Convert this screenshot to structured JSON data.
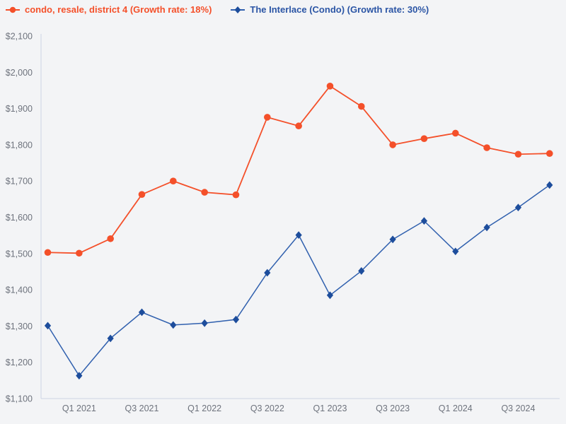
{
  "page": {
    "background_color": "#f3f4f6"
  },
  "chart_data": {
    "type": "line",
    "title": "",
    "xlabel": "",
    "ylabel": "",
    "grid": false,
    "legend_position": "top-left",
    "categories": [
      "Q4 2020",
      "Q1 2021",
      "Q2 2021",
      "Q3 2021",
      "Q4 2021",
      "Q1 2022",
      "Q2 2022",
      "Q3 2022",
      "Q4 2022",
      "Q1 2023",
      "Q2 2023",
      "Q3 2023",
      "Q4 2023",
      "Q1 2024",
      "Q2 2024",
      "Q3 2024",
      "Q4 2024"
    ],
    "x_tick_labels": [
      "Q1 2021",
      "Q3 2021",
      "Q1 2022",
      "Q3 2022",
      "Q1 2023",
      "Q3 2023",
      "Q1 2024",
      "Q3 2024"
    ],
    "x_tick_indices": [
      1,
      3,
      5,
      7,
      9,
      11,
      13,
      15
    ],
    "ylim": [
      1100,
      2100
    ],
    "y_tick_step": 100,
    "y_tick_prefix": "$",
    "y_tick_labels": [
      "$1,100",
      "$1,200",
      "$1,300",
      "$1,400",
      "$1,500",
      "$1,600",
      "$1,700",
      "$1,800",
      "$1,900",
      "$2,000",
      "$2,100"
    ],
    "axis_color": "#ccd4e4",
    "tick_label_color": "#6e737d",
    "series": [
      {
        "name": "condo, resale, district 4 (Growth rate: 18%)",
        "marker": "circle",
        "line_color": "#f4502a",
        "marker_color": "#f4502a",
        "label_color": "#f4502a",
        "line_width": 1.8,
        "values": [
          1503,
          1501,
          1541,
          1663,
          1700,
          1669,
          1662,
          1876,
          1852,
          1962,
          1906,
          1800,
          1817,
          1832,
          1792,
          1774,
          1776
        ]
      },
      {
        "name": "The Interlace (Condo) (Growth rate: 30%)",
        "marker": "diamond",
        "line_color": "#3060ae",
        "marker_color": "#1d4d9c",
        "label_color": "#2b55a5",
        "line_width": 1.5,
        "values": [
          1301,
          1163,
          1266,
          1338,
          1303,
          1308,
          1318,
          1447,
          1551,
          1385,
          1452,
          1539,
          1590,
          1506,
          1572,
          1627,
          1689
        ]
      }
    ]
  }
}
